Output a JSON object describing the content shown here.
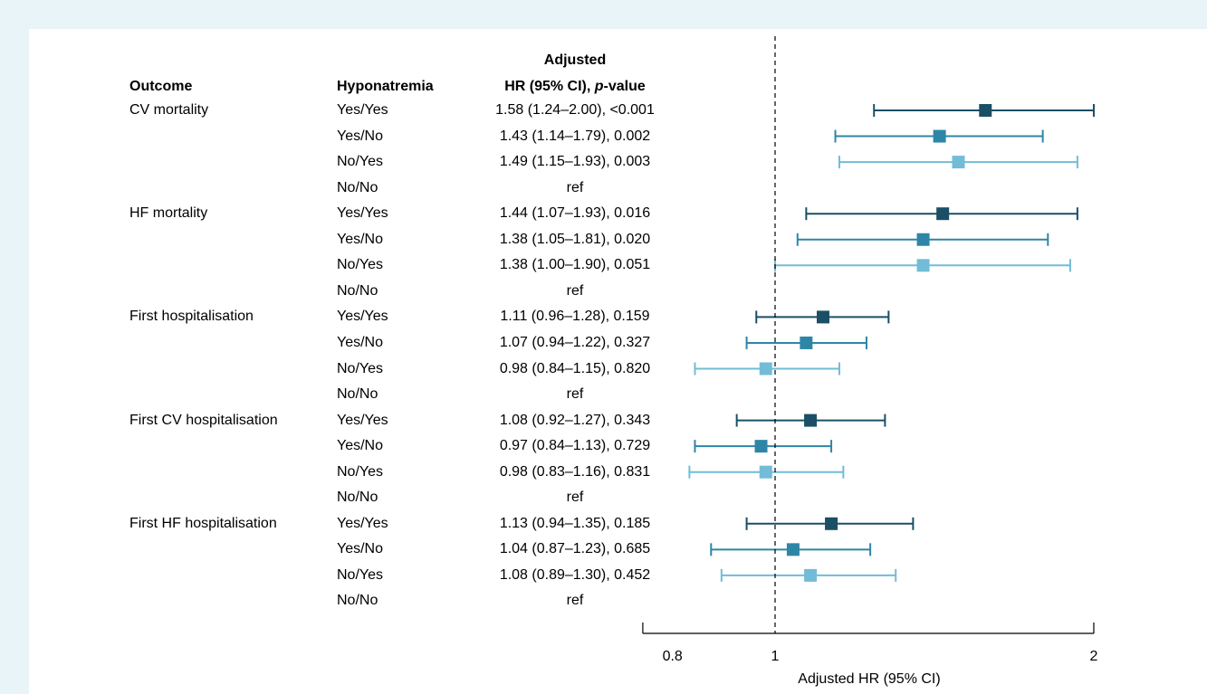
{
  "header": {
    "outcome": "Outcome",
    "hyponatremia": "Hyponatremia",
    "hr_line1": "Adjusted",
    "hr_line2_prefix": "HR (95% CI), ",
    "hr_line2_italic": "p",
    "hr_line2_suffix": "-value"
  },
  "colors": {
    "yes_yes": "#1b4f66",
    "yes_no": "#2e86a6",
    "no_yes": "#72bcd8",
    "ref_line": "#000000"
  },
  "chart_data": {
    "type": "forest",
    "xlabel": "Adjusted HR (95% CI)",
    "scale": "log",
    "xlim": [
      0.75,
      2.0
    ],
    "ticks": [
      {
        "value": 0.8,
        "label": "0.8"
      },
      {
        "value": 1,
        "label": "1"
      },
      {
        "value": 2,
        "label": "2"
      }
    ],
    "reference_line": 1,
    "rows": [
      {
        "outcome": "CV mortality",
        "group": "Yes/Yes",
        "text": "1.58 (1.24–2.00), <0.001",
        "hr": 1.58,
        "lo": 1.24,
        "hi": 2.0
      },
      {
        "outcome": "",
        "group": "Yes/No",
        "text": "1.43 (1.14–1.79), 0.002",
        "hr": 1.43,
        "lo": 1.14,
        "hi": 1.79
      },
      {
        "outcome": "",
        "group": "No/Yes",
        "text": "1.49 (1.15–1.93), 0.003",
        "hr": 1.49,
        "lo": 1.15,
        "hi": 1.93
      },
      {
        "outcome": "",
        "group": "No/No",
        "text": "ref",
        "hr": null,
        "lo": null,
        "hi": null
      },
      {
        "outcome": "HF mortality",
        "group": "Yes/Yes",
        "text": "1.44 (1.07–1.93), 0.016",
        "hr": 1.44,
        "lo": 1.07,
        "hi": 1.93
      },
      {
        "outcome": "",
        "group": "Yes/No",
        "text": "1.38 (1.05–1.81), 0.020",
        "hr": 1.38,
        "lo": 1.05,
        "hi": 1.81
      },
      {
        "outcome": "",
        "group": "No/Yes",
        "text": "1.38 (1.00–1.90), 0.051",
        "hr": 1.38,
        "lo": 1.0,
        "hi": 1.9
      },
      {
        "outcome": "",
        "group": "No/No",
        "text": "ref",
        "hr": null,
        "lo": null,
        "hi": null
      },
      {
        "outcome": "First hospitalisation",
        "group": "Yes/Yes",
        "text": "1.11 (0.96–1.28), 0.159",
        "hr": 1.11,
        "lo": 0.96,
        "hi": 1.28
      },
      {
        "outcome": "",
        "group": "Yes/No",
        "text": "1.07 (0.94–1.22), 0.327",
        "hr": 1.07,
        "lo": 0.94,
        "hi": 1.22
      },
      {
        "outcome": "",
        "group": "No/Yes",
        "text": "0.98 (0.84–1.15), 0.820",
        "hr": 0.98,
        "lo": 0.84,
        "hi": 1.15
      },
      {
        "outcome": "",
        "group": "No/No",
        "text": "ref",
        "hr": null,
        "lo": null,
        "hi": null
      },
      {
        "outcome": "First CV hospitalisation",
        "group": "Yes/Yes",
        "text": "1.08 (0.92–1.27), 0.343",
        "hr": 1.08,
        "lo": 0.92,
        "hi": 1.27
      },
      {
        "outcome": "",
        "group": "Yes/No",
        "text": "0.97 (0.84–1.13), 0.729",
        "hr": 0.97,
        "lo": 0.84,
        "hi": 1.13
      },
      {
        "outcome": "",
        "group": "No/Yes",
        "text": "0.98 (0.83–1.16), 0.831",
        "hr": 0.98,
        "lo": 0.83,
        "hi": 1.16
      },
      {
        "outcome": "",
        "group": "No/No",
        "text": "ref",
        "hr": null,
        "lo": null,
        "hi": null
      },
      {
        "outcome": "First HF hospitalisation",
        "group": "Yes/Yes",
        "text": "1.13 (0.94–1.35), 0.185",
        "hr": 1.13,
        "lo": 0.94,
        "hi": 1.35
      },
      {
        "outcome": "",
        "group": "Yes/No",
        "text": "1.04 (0.87–1.23), 0.685",
        "hr": 1.04,
        "lo": 0.87,
        "hi": 1.23
      },
      {
        "outcome": "",
        "group": "No/Yes",
        "text": "1.08 (0.89–1.30), 0.452",
        "hr": 1.08,
        "lo": 0.89,
        "hi": 1.3
      },
      {
        "outcome": "",
        "group": "No/No",
        "text": "ref",
        "hr": null,
        "lo": null,
        "hi": null
      }
    ]
  }
}
